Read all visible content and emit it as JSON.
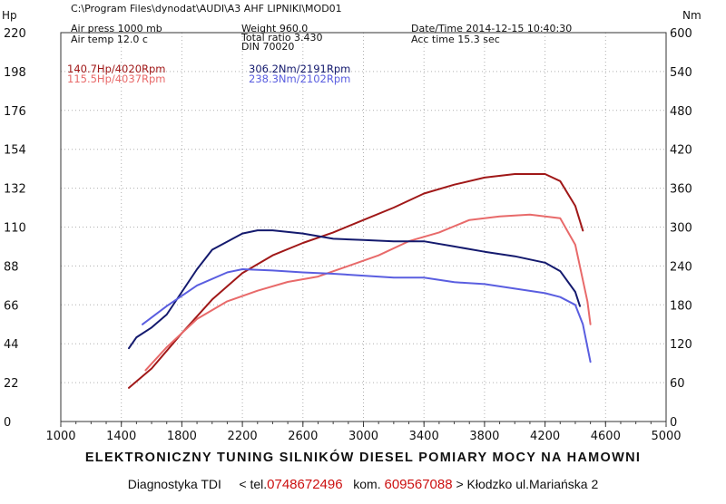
{
  "header": {
    "path": "C:\\Program Files\\dynodat\\AUDI\\A3 AHF LIPNIKI\\MOD01",
    "air_press": "Air press  1000 mb",
    "air_temp": "Air temp  12.0 c",
    "weight": "Weight   960.0",
    "ratio": "Total ratio 3.430",
    "din": "DIN 70020",
    "datetime": "Date/Time  2014-12-15 10:40:30",
    "acc_time": "Acc time  15.3 sec"
  },
  "legend": {
    "power_mod": "140.7Hp/4020Rpm",
    "power_std": "115.5Hp/4037Rpm",
    "torque_mod": "306.2Nm/2191Rpm",
    "torque_std": "238.3Nm/2102Rpm"
  },
  "footer": {
    "line1": "ELEKTRONICZNY TUNING SILNIKÓW DIESEL  POMIARY MOCY NA HAMOWNI",
    "diag": "Diagnostyka TDI",
    "tel_prefix": "< tel.",
    "tel": "0748672496",
    "kom_prefix": "kom.",
    "kom": "609567088",
    "address": "> Kłodzko ul.Mariańska 2"
  },
  "colors": {
    "power_mod": "#a01818",
    "power_std": "#e86a6a",
    "torque_mod": "#141a6e",
    "torque_std": "#5a5ee0",
    "grid": "#b0b0b0"
  },
  "chart_data": {
    "type": "line",
    "left_axis": {
      "label": "Hp",
      "ylim": [
        0,
        220
      ],
      "ticks": [
        0,
        22,
        44,
        66,
        88,
        110,
        132,
        154,
        176,
        198,
        220
      ]
    },
    "right_axis": {
      "label": "Nm",
      "ylim": [
        0,
        600
      ],
      "ticks": [
        0,
        60,
        120,
        180,
        240,
        300,
        360,
        420,
        480,
        540,
        600
      ]
    },
    "x_axis": {
      "xlim": [
        1000,
        5000
      ],
      "ticks": [
        1000,
        1400,
        1800,
        2200,
        2600,
        3000,
        3400,
        3800,
        4200,
        4600,
        5000
      ]
    },
    "grid": true,
    "series": [
      {
        "key": "power_mod",
        "axis": "left",
        "x": [
          1450,
          1600,
          1800,
          2000,
          2200,
          2400,
          2600,
          2800,
          3000,
          3200,
          3400,
          3600,
          3800,
          4000,
          4200,
          4300,
          4400,
          4450
        ],
        "values": [
          19,
          30,
          50,
          69,
          84,
          94,
          101,
          107,
          114,
          121,
          129,
          134,
          138,
          140,
          140,
          136,
          122,
          108
        ]
      },
      {
        "key": "power_std",
        "axis": "left",
        "x": [
          1560,
          1700,
          1900,
          2100,
          2300,
          2500,
          2700,
          2900,
          3100,
          3300,
          3500,
          3700,
          3900,
          4100,
          4300,
          4400,
          4480,
          4500
        ],
        "values": [
          29,
          42,
          58,
          68,
          74,
          79,
          82,
          88,
          94,
          102,
          107,
          114,
          116,
          117,
          115,
          100,
          68,
          55
        ]
      },
      {
        "key": "torque_mod",
        "axis": "right",
        "x": [
          1450,
          1500,
          1600,
          1700,
          1800,
          1900,
          2000,
          2200,
          2300,
          2400,
          2600,
          2800,
          3000,
          3200,
          3400,
          3600,
          3800,
          4000,
          4200,
          4300,
          4400,
          4430
        ],
        "values": [
          113,
          130,
          145,
          165,
          200,
          235,
          265,
          290,
          295,
          295,
          290,
          282,
          280,
          278,
          278,
          270,
          262,
          255,
          245,
          232,
          200,
          178
        ]
      },
      {
        "key": "torque_std",
        "axis": "right",
        "x": [
          1540,
          1700,
          1900,
          2100,
          2200,
          2400,
          2600,
          2800,
          3000,
          3200,
          3400,
          3600,
          3800,
          4000,
          4200,
          4300,
          4400,
          4450,
          4500
        ],
        "values": [
          150,
          178,
          210,
          230,
          235,
          233,
          230,
          228,
          225,
          222,
          222,
          215,
          212,
          205,
          198,
          192,
          180,
          150,
          92
        ]
      }
    ]
  }
}
